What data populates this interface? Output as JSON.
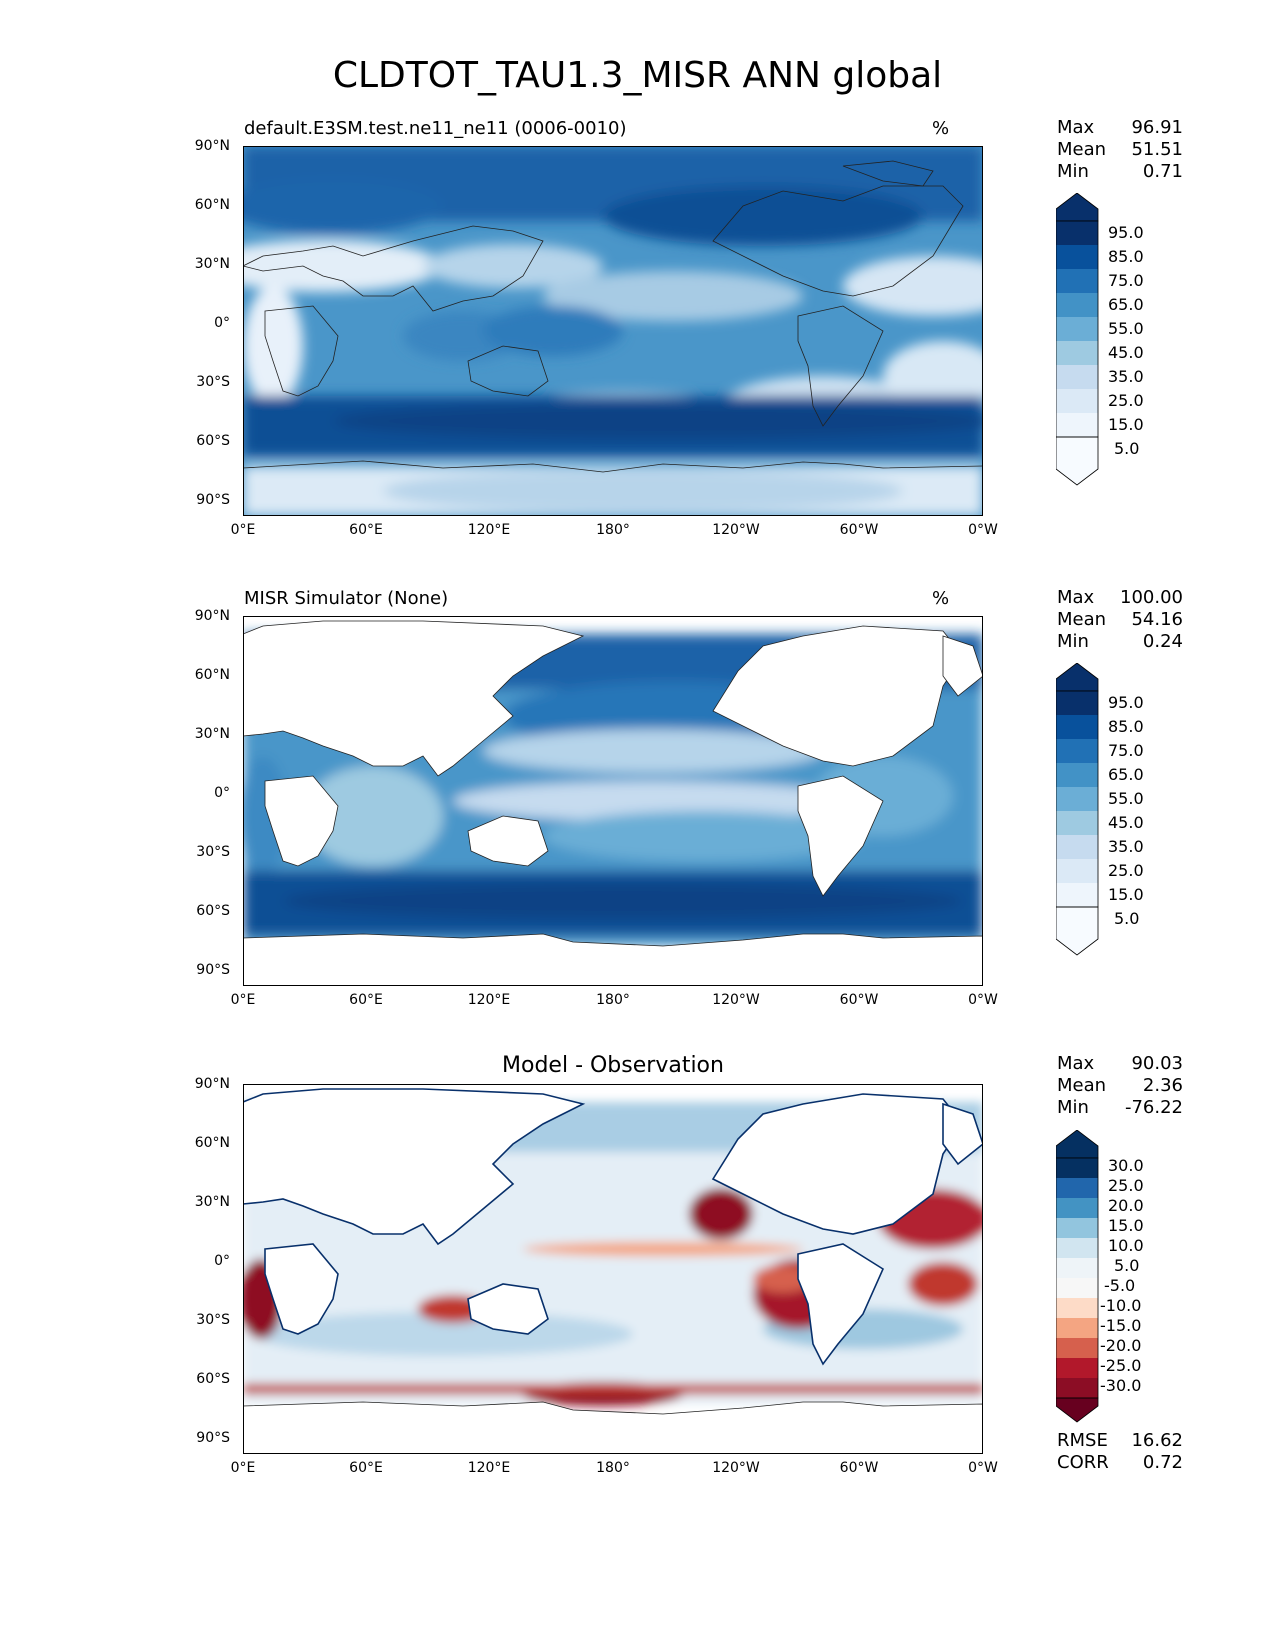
{
  "figure_title": "CLDTOT_TAU1.3_MISR ANN global",
  "lat_ticks": [
    "90°N",
    "60°N",
    "30°N",
    "0°",
    "30°S",
    "60°S",
    "90°S"
  ],
  "lon_ticks": [
    "0°E",
    "60°E",
    "120°E",
    "180°",
    "120°W",
    "60°W",
    "0°W"
  ],
  "panels": [
    {
      "title": "default.E3SM.test.ne11_ne11 (0006-0010)",
      "units": "%",
      "stats": [
        {
          "label": "Max",
          "value": "96.91"
        },
        {
          "label": "Mean",
          "value": "51.51"
        },
        {
          "label": "Min",
          "value": "0.71"
        }
      ],
      "colorbar_labels": [
        "95.0",
        "85.0",
        "75.0",
        "65.0",
        "55.0",
        "45.0",
        "35.0",
        "25.0",
        "15.0",
        "5.0"
      ]
    },
    {
      "title": "MISR Simulator (None)",
      "units": "%",
      "stats": [
        {
          "label": "Max",
          "value": "100.00"
        },
        {
          "label": "Mean",
          "value": "54.16"
        },
        {
          "label": "Min",
          "value": "0.24"
        }
      ],
      "colorbar_labels": [
        "95.0",
        "85.0",
        "75.0",
        "65.0",
        "55.0",
        "45.0",
        "35.0",
        "25.0",
        "15.0",
        "5.0"
      ]
    },
    {
      "title": "Model - Observation",
      "units": "",
      "stats": [
        {
          "label": "Max",
          "value": "90.03"
        },
        {
          "label": "Mean",
          "value": "2.36"
        },
        {
          "label": "Min",
          "value": "-76.22"
        }
      ],
      "colorbar_labels": [
        "30.0",
        "25.0",
        "20.0",
        "15.0",
        "10.0",
        "5.0",
        "-5.0",
        "-10.0",
        "-15.0",
        "-20.0",
        "-25.0",
        "-30.0"
      ],
      "metrics": [
        {
          "label": "RMSE",
          "value": "16.62"
        },
        {
          "label": "CORR",
          "value": "0.72"
        }
      ]
    }
  ],
  "colors": {
    "blues": [
      "#f7fbff",
      "#deebf7",
      "#c6dbef",
      "#9ecae1",
      "#6baed6",
      "#4292c6",
      "#2171b5",
      "#08519c",
      "#08306b"
    ],
    "diff": [
      "#67001f",
      "#b2182b",
      "#d6604d",
      "#f4a582",
      "#fddbc7",
      "#f7f7f7",
      "#d1e5f0",
      "#92c5de",
      "#4393c3",
      "#2166ac",
      "#053061"
    ]
  }
}
